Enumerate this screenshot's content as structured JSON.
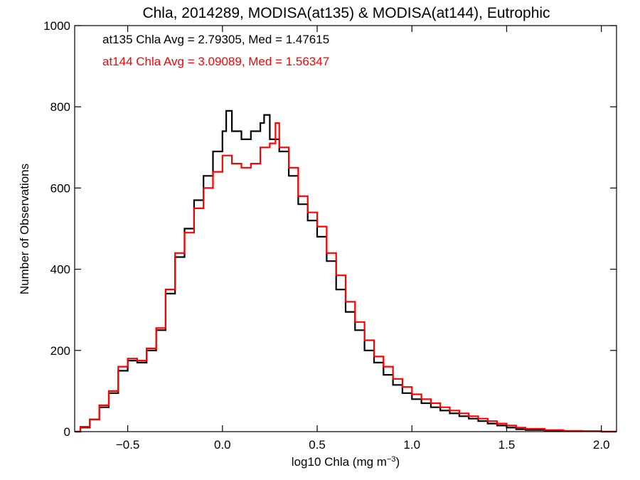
{
  "chart_data": {
    "type": "histogram",
    "title": "Chla, 2014289, MODISA(at135) & MODISA(at144), Eutrophic",
    "xlabel_main": "log10 Chla (mg m",
    "xlabel_exp": "−3",
    "xlabel_close": ")",
    "ylabel": "Number of Observations",
    "xlim": [
      -0.78,
      2.08
    ],
    "ylim": [
      0,
      1000
    ],
    "xticks": [
      -0.5,
      0.0,
      0.5,
      1.0,
      1.5,
      2.0
    ],
    "xtick_labels": [
      "−0.5",
      "0.0",
      "0.5",
      "1.0",
      "1.5",
      "2.0"
    ],
    "yticks": [
      0,
      200,
      400,
      600,
      800,
      1000
    ],
    "ytick_labels": [
      "0",
      "200",
      "400",
      "600",
      "800",
      "1000"
    ],
    "grid": false,
    "annotations": [
      {
        "text": "at135 Chla Avg = 2.79305, Med = 1.47615",
        "color": "#000000"
      },
      {
        "text": "at144 Chla Avg = 3.09089, Med = 1.56347",
        "color": "#ff0000"
      }
    ],
    "series": [
      {
        "color": "#000000",
        "points": [
          [
            -0.78,
            0
          ],
          [
            -0.75,
            10
          ],
          [
            -0.7,
            30
          ],
          [
            -0.65,
            60
          ],
          [
            -0.6,
            95
          ],
          [
            -0.55,
            150
          ],
          [
            -0.5,
            175
          ],
          [
            -0.45,
            170
          ],
          [
            -0.4,
            200
          ],
          [
            -0.35,
            250
          ],
          [
            -0.3,
            340
          ],
          [
            -0.25,
            430
          ],
          [
            -0.2,
            500
          ],
          [
            -0.15,
            570
          ],
          [
            -0.1,
            630
          ],
          [
            -0.05,
            690
          ],
          [
            0.0,
            740
          ],
          [
            0.02,
            790
          ],
          [
            0.05,
            740
          ],
          [
            0.1,
            720
          ],
          [
            0.15,
            740
          ],
          [
            0.2,
            760
          ],
          [
            0.22,
            780
          ],
          [
            0.25,
            720
          ],
          [
            0.3,
            690
          ],
          [
            0.35,
            630
          ],
          [
            0.4,
            560
          ],
          [
            0.45,
            520
          ],
          [
            0.5,
            480
          ],
          [
            0.55,
            420
          ],
          [
            0.6,
            350
          ],
          [
            0.65,
            295
          ],
          [
            0.7,
            250
          ],
          [
            0.75,
            200
          ],
          [
            0.8,
            170
          ],
          [
            0.85,
            140
          ],
          [
            0.9,
            115
          ],
          [
            0.95,
            95
          ],
          [
            1.0,
            80
          ],
          [
            1.05,
            70
          ],
          [
            1.1,
            60
          ],
          [
            1.15,
            52
          ],
          [
            1.2,
            45
          ],
          [
            1.25,
            38
          ],
          [
            1.3,
            32
          ],
          [
            1.35,
            26
          ],
          [
            1.4,
            20
          ],
          [
            1.45,
            15
          ],
          [
            1.5,
            10
          ],
          [
            1.55,
            6
          ],
          [
            1.6,
            4
          ],
          [
            1.7,
            2
          ],
          [
            1.8,
            1
          ],
          [
            1.9,
            1
          ],
          [
            2.0,
            0
          ],
          [
            2.08,
            0
          ]
        ]
      },
      {
        "color": "#ff0000",
        "points": [
          [
            -0.78,
            0
          ],
          [
            -0.75,
            12
          ],
          [
            -0.7,
            30
          ],
          [
            -0.65,
            65
          ],
          [
            -0.6,
            100
          ],
          [
            -0.55,
            160
          ],
          [
            -0.5,
            180
          ],
          [
            -0.45,
            175
          ],
          [
            -0.4,
            205
          ],
          [
            -0.35,
            255
          ],
          [
            -0.3,
            350
          ],
          [
            -0.25,
            440
          ],
          [
            -0.2,
            490
          ],
          [
            -0.15,
            550
          ],
          [
            -0.1,
            600
          ],
          [
            -0.05,
            640
          ],
          [
            0.0,
            680
          ],
          [
            0.05,
            660
          ],
          [
            0.1,
            650
          ],
          [
            0.15,
            660
          ],
          [
            0.2,
            700
          ],
          [
            0.25,
            710
          ],
          [
            0.28,
            760
          ],
          [
            0.3,
            700
          ],
          [
            0.35,
            650
          ],
          [
            0.4,
            580
          ],
          [
            0.45,
            540
          ],
          [
            0.5,
            505
          ],
          [
            0.55,
            440
          ],
          [
            0.6,
            385
          ],
          [
            0.65,
            320
          ],
          [
            0.7,
            270
          ],
          [
            0.75,
            225
          ],
          [
            0.8,
            185
          ],
          [
            0.85,
            160
          ],
          [
            0.9,
            130
          ],
          [
            0.95,
            110
          ],
          [
            1.0,
            92
          ],
          [
            1.05,
            80
          ],
          [
            1.1,
            70
          ],
          [
            1.15,
            60
          ],
          [
            1.2,
            52
          ],
          [
            1.25,
            45
          ],
          [
            1.3,
            38
          ],
          [
            1.35,
            32
          ],
          [
            1.4,
            26
          ],
          [
            1.45,
            20
          ],
          [
            1.5,
            15
          ],
          [
            1.55,
            10
          ],
          [
            1.6,
            7
          ],
          [
            1.7,
            4
          ],
          [
            1.8,
            2
          ],
          [
            1.9,
            1
          ],
          [
            2.0,
            0
          ],
          [
            2.08,
            0
          ]
        ]
      }
    ]
  }
}
